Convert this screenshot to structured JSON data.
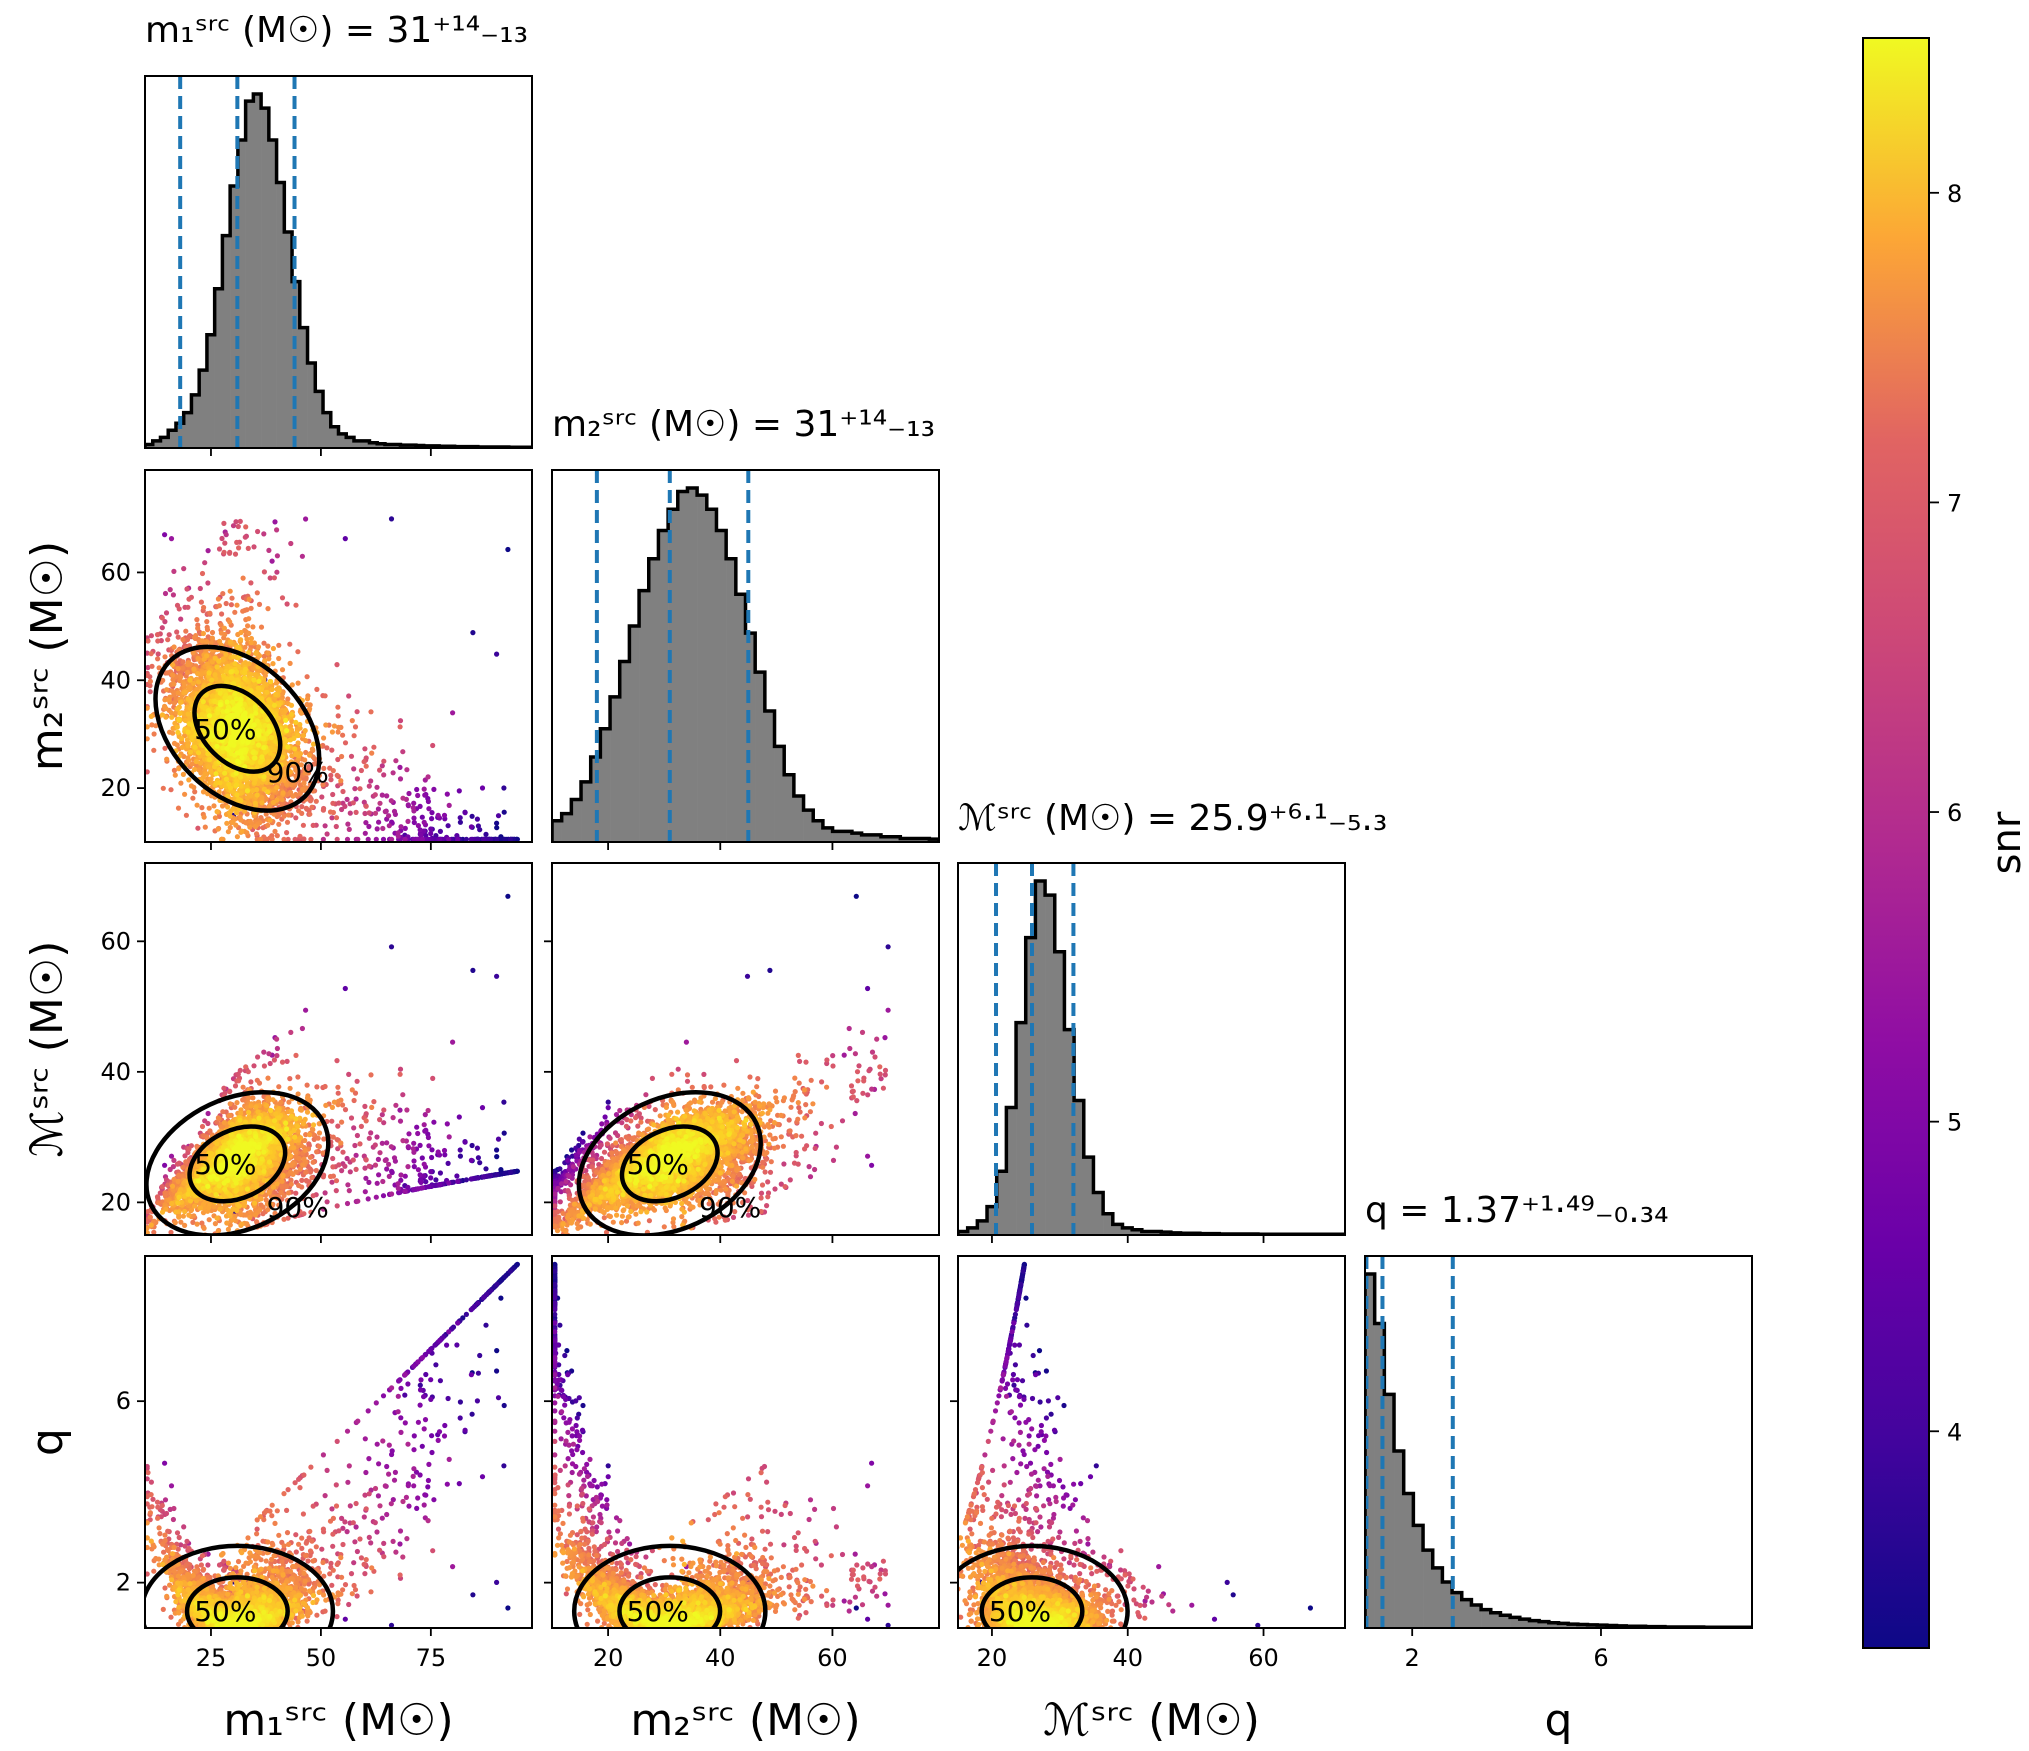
{
  "chart_data": {
    "type": "corner",
    "parameters": [
      "m1",
      "m2",
      "mchirp",
      "q"
    ],
    "axis_labels": [
      "m₁ˢʳᶜ (M☉)",
      "m₂ˢʳᶜ (M☉)",
      "ℳˢʳᶜ (M☉)",
      "q"
    ],
    "titles": [
      "m₁ˢʳᶜ (M☉) = 31⁺¹⁴₋₁₃",
      "m₂ˢʳᶜ (M☉) = 31⁺¹⁴₋₁₃",
      "ℳˢʳᶜ (M☉) = 25.9⁺⁶·¹₋₅.₃",
      "q = 1.37⁺¹·⁴⁹₋₀.₃₄"
    ],
    "ranges": [
      [
        10,
        98
      ],
      [
        10,
        79
      ],
      [
        15,
        72
      ],
      [
        1.0,
        9.2
      ]
    ],
    "ticks": [
      [
        25,
        50,
        75
      ],
      [
        20,
        40,
        60
      ],
      [
        20,
        40,
        60
      ],
      [
        2,
        6
      ]
    ],
    "left_ticks": {
      "m2": [
        20,
        40,
        60
      ],
      "mchirp": [
        20,
        40,
        60
      ],
      "q": [
        2,
        6
      ]
    },
    "histograms": [
      {
        "name": "m1",
        "quantiles": [
          18,
          31,
          44
        ],
        "median": 31,
        "plus": 14,
        "minus": 13,
        "lo": 10,
        "hi": 98,
        "counts": [
          1,
          2,
          3,
          5,
          7,
          10,
          15,
          22,
          32,
          45,
          60,
          74,
          87,
          98,
          100,
          96,
          87,
          75,
          61,
          47,
          34,
          24,
          16,
          10,
          6,
          4,
          3,
          2,
          2,
          1.5,
          1.2,
          1,
          1,
          0.8,
          0.8,
          0.7,
          0.6,
          0.6,
          0.5,
          0.5,
          0.4,
          0.4,
          0.4,
          0.3,
          0.3,
          0.3,
          0.3,
          0.2,
          0.2,
          0.2
        ]
      },
      {
        "name": "m2",
        "quantiles": [
          18,
          31,
          45
        ],
        "median": 31,
        "plus": 14,
        "minus": 13,
        "lo": 10,
        "hi": 79,
        "counts": [
          6,
          8,
          12,
          17,
          24,
          32,
          41,
          51,
          61,
          71,
          80,
          88,
          94,
          99,
          100,
          98,
          94,
          88,
          80,
          70,
          59,
          48,
          37,
          27,
          19,
          13,
          9,
          6,
          4,
          3,
          3,
          2.5,
          2,
          2,
          1.5,
          1.5,
          1,
          1,
          1,
          0.8
        ]
      },
      {
        "name": "mchirp",
        "quantiles": [
          20.6,
          25.9,
          32
        ],
        "median": 25.9,
        "plus": 6.1,
        "minus": 5.3,
        "lo": 15,
        "hi": 72,
        "counts": [
          1,
          2,
          4,
          8,
          18,
          36,
          60,
          84,
          100,
          96,
          80,
          58,
          38,
          22,
          12,
          6,
          3,
          2,
          1.5,
          1,
          1,
          0.8,
          0.6,
          0.5,
          0.5,
          0.4,
          0.4,
          0.3,
          0.3,
          0.3,
          0.3,
          0.2,
          0.2,
          0.2,
          0.2,
          0.2,
          0.2,
          0.2,
          0.2,
          0.2
        ]
      },
      {
        "name": "q",
        "quantiles": [
          1.03,
          1.37,
          2.86
        ],
        "median": 1.37,
        "plus": 1.49,
        "minus": 0.34,
        "lo": 1.0,
        "hi": 9.2,
        "counts": [
          100,
          86,
          66,
          50,
          38,
          29,
          22,
          17,
          13,
          10,
          8,
          6.5,
          5.2,
          4.3,
          3.6,
          3,
          2.5,
          2.1,
          1.8,
          1.5,
          1.3,
          1.1,
          1,
          0.9,
          0.8,
          0.7,
          0.6,
          0.5,
          0.5,
          0.4,
          0.4,
          0.3,
          0.3,
          0.3,
          0.3,
          0.2,
          0.2,
          0.2,
          0.2,
          0.2
        ]
      }
    ],
    "contour_labels": [
      "50%",
      "90%"
    ],
    "colorbar": {
      "label": "snr",
      "range": [
        3.3,
        8.5
      ],
      "ticks": [
        4,
        5,
        6,
        7,
        8
      ],
      "colormap": "plasma"
    },
    "colors": {
      "histogram_fill": "#808080",
      "quantile_line": "#1f77b4",
      "contour": "#000000"
    }
  }
}
